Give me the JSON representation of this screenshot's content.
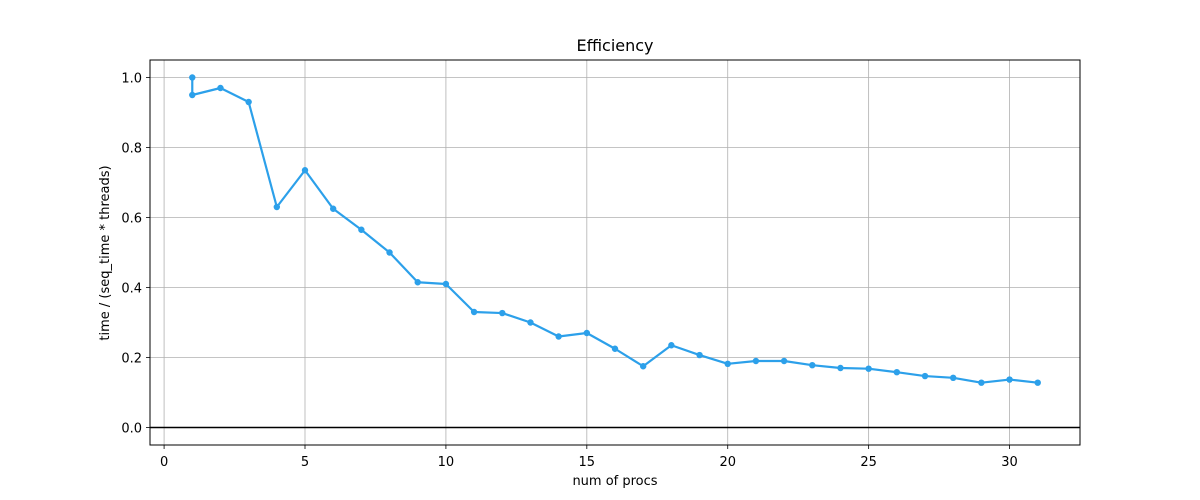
{
  "chart_data": {
    "type": "line",
    "title": "Efficiency",
    "xlabel": "num of procs",
    "ylabel": "time / (seq_time * threads)",
    "xlim": [
      -0.5,
      32.5
    ],
    "ylim": [
      -0.05,
      1.05
    ],
    "xticks": [
      0,
      5,
      10,
      15,
      20,
      25,
      30
    ],
    "yticks": [
      0.0,
      0.2,
      0.4,
      0.6,
      0.8,
      1.0
    ],
    "xtick_labels": [
      "0",
      "5",
      "10",
      "15",
      "20",
      "25",
      "30"
    ],
    "ytick_labels": [
      "0.0",
      "0.2",
      "0.4",
      "0.6",
      "0.8",
      "1.0"
    ],
    "grid": true,
    "hline": 0,
    "series": [
      {
        "color": "#2ca0ea",
        "x": [
          1,
          1,
          2,
          3,
          4,
          5,
          6,
          7,
          8,
          9,
          10,
          11,
          12,
          13,
          14,
          15,
          16,
          17,
          18,
          19,
          20,
          21,
          22,
          23,
          24,
          25,
          26,
          27,
          28,
          29,
          30,
          31
        ],
        "y": [
          1.0,
          0.95,
          0.97,
          0.93,
          0.63,
          0.735,
          0.625,
          0.565,
          0.5,
          0.415,
          0.41,
          0.33,
          0.327,
          0.3,
          0.26,
          0.27,
          0.225,
          0.175,
          0.235,
          0.207,
          0.182,
          0.19,
          0.19,
          0.178,
          0.17,
          0.168,
          0.158,
          0.147,
          0.142,
          0.128,
          0.137,
          0.128
        ]
      }
    ]
  }
}
